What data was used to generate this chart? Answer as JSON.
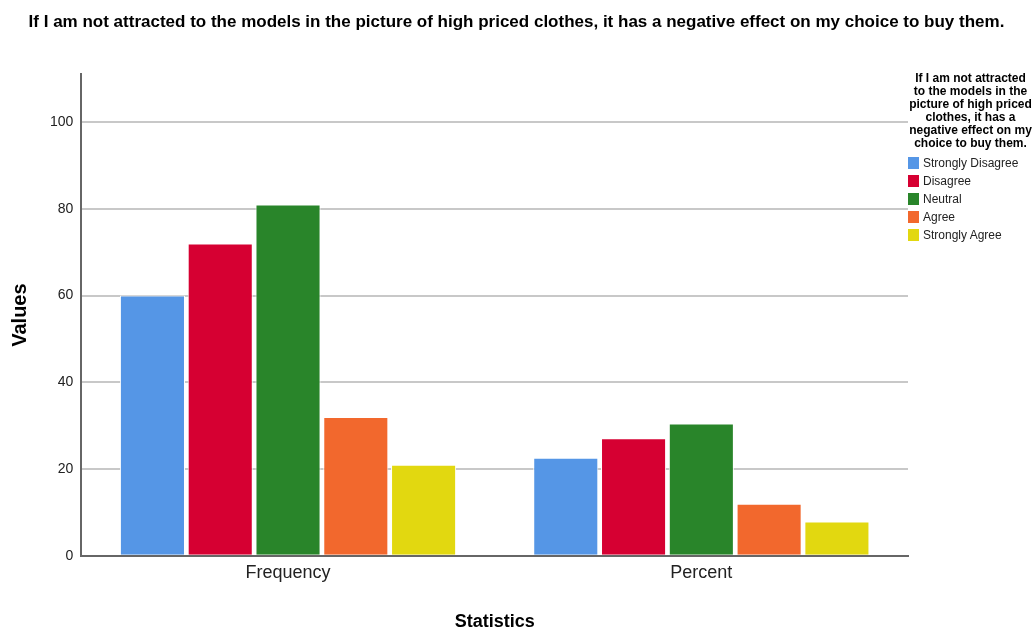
{
  "chart_data": {
    "type": "bar",
    "title": "If I am not attracted to the models in the picture of high priced clothes, it has a negative effect on my choice to buy them.",
    "xlabel": "Statistics",
    "ylabel": "Values",
    "legend_title": "If I am not attracted to the models in the picture of high priced clothes, it has a negative effect on my choice to buy them.",
    "categories": [
      "Frequency",
      "Percent"
    ],
    "series": [
      {
        "name": "Strongly Disagree",
        "color": "#5596e6",
        "values": [
          60,
          22.6
        ]
      },
      {
        "name": "Disagree",
        "color": "#d60032",
        "values": [
          72,
          27.1
        ]
      },
      {
        "name": "Neutral",
        "color": "#29852a",
        "values": [
          81,
          30.5
        ]
      },
      {
        "name": "Agree",
        "color": "#f2682d",
        "values": [
          32,
          12.0
        ]
      },
      {
        "name": "Strongly Agree",
        "color": "#e2d810",
        "values": [
          21,
          7.9
        ]
      }
    ],
    "ylim": [
      0,
      111
    ],
    "yticks": [
      0,
      20,
      40,
      60,
      80,
      100
    ],
    "grid": "y",
    "legend": "top right"
  }
}
